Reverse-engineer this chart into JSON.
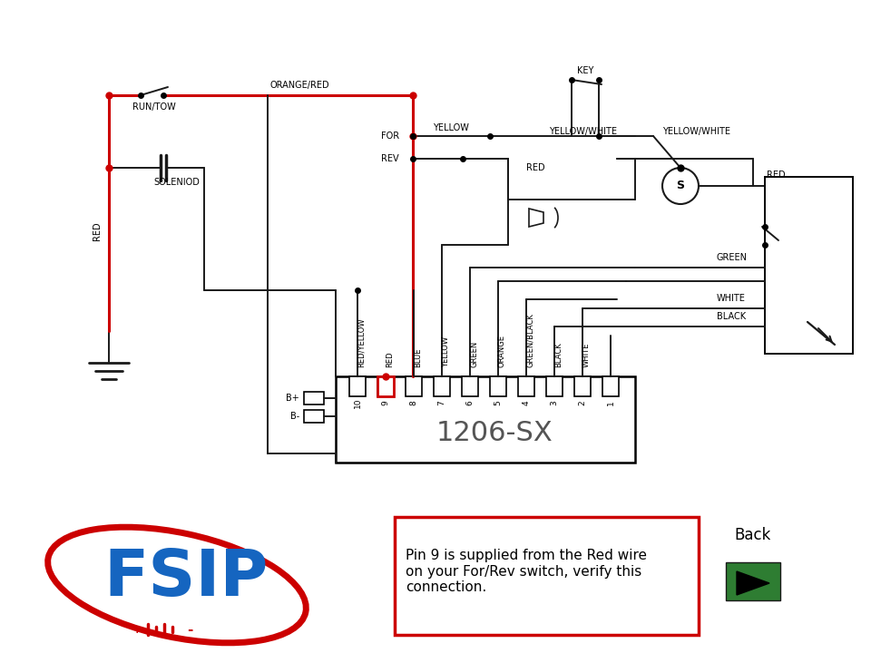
{
  "bg_color": "#ffffff",
  "line_color": "#1a1a1a",
  "red_color": "#cc0000",
  "blue_color": "#1565c0",
  "green_color": "#2e7d32",
  "note_text": "Pin 9 is supplied from the Red wire\non your For/Rev switch, verify this\nconnection.",
  "back_text": "Back",
  "model_text": "1206-SX",
  "fsip_text": "FSIP",
  "wire_labels": [
    "RED/YELLOW",
    "RED",
    "BLUE",
    "YELLOW",
    "GREEN",
    "ORANGE",
    "GREEN/BLACK",
    "BLACK",
    "WHITE"
  ],
  "pin_numbers": [
    "10",
    "9",
    "8",
    "7",
    "6",
    "5",
    "4",
    "3",
    "2",
    "1"
  ]
}
